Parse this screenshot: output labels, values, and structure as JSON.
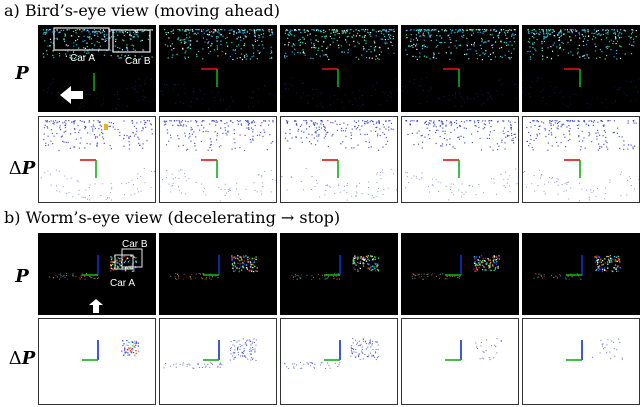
{
  "sections": [
    {
      "heading": "a) Bird’s-eye view (moving ahead)",
      "row_labels": {
        "P": "P",
        "dP_delta": "Δ",
        "dP_var": "P"
      },
      "annotations": [
        "Car A",
        "Car B"
      ]
    },
    {
      "heading": "b) Worm’s-eye view (decelerating → stop)",
      "row_labels": {
        "P": "P",
        "dP_delta": "Δ",
        "dP_var": "P"
      },
      "annotations": [
        "Car B",
        "Car A"
      ]
    }
  ],
  "colors": {
    "P_background": "#000000",
    "dP_background": "#ffffff",
    "axis_x": "#e01010",
    "axis_y": "#10b010",
    "axis_z": "#1030d0",
    "car_box": "#e8e8e8",
    "points_cool": "#2ad6c8",
    "points_warm": "#f0a020",
    "points_dP": "#2030c0"
  },
  "icons": [
    "left-arrow-icon",
    "up-arrow-icon"
  ]
}
